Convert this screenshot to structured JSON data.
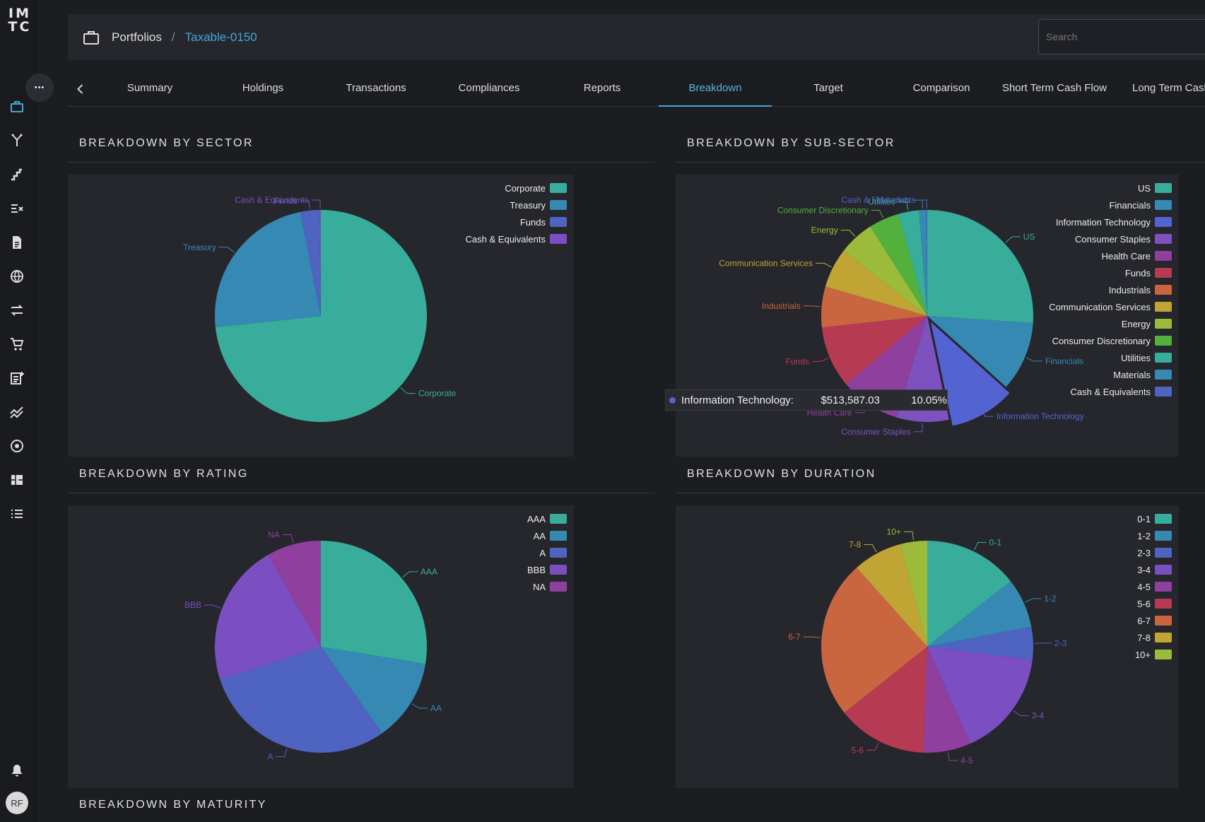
{
  "logo": {
    "line1": "IM",
    "line2": "TC"
  },
  "sidebar": {
    "items": [
      {
        "icon": "briefcase-icon"
      },
      {
        "icon": "fork-icon"
      },
      {
        "icon": "stairs-chart-icon"
      },
      {
        "icon": "filter-list-icon"
      },
      {
        "icon": "document-icon"
      },
      {
        "icon": "globe-icon"
      },
      {
        "icon": "swap-arrows-icon"
      },
      {
        "icon": "cart-icon"
      },
      {
        "icon": "add-note-icon"
      },
      {
        "icon": "trend-lines-icon"
      },
      {
        "icon": "target-icon"
      },
      {
        "icon": "grid-blocks-icon"
      },
      {
        "icon": "list-icon"
      }
    ],
    "more_label": "•••",
    "avatar_initials": "RF"
  },
  "breadcrumb": {
    "root": "Portfolios",
    "separator": "/",
    "current": "Taxable-0150"
  },
  "search": {
    "placeholder": "Search"
  },
  "tabs": [
    {
      "label": "Summary"
    },
    {
      "label": "Holdings"
    },
    {
      "label": "Transactions"
    },
    {
      "label": "Compliances"
    },
    {
      "label": "Reports"
    },
    {
      "label": "Breakdown",
      "active": true
    },
    {
      "label": "Target"
    },
    {
      "label": "Comparison"
    },
    {
      "label": "Short Term Cash Flow"
    },
    {
      "label": "Long Term Cash Flow"
    }
  ],
  "sections": {
    "sector": "BREAKDOWN BY SECTOR",
    "subsector": "BREAKDOWN BY SUB-SECTOR",
    "rating": "BREAKDOWN BY RATING",
    "duration": "BREAKDOWN BY DURATION",
    "maturity": "BREAKDOWN BY MATURITY"
  },
  "tooltip": {
    "label": "Information Technology:",
    "value": "$513,587.03",
    "percent": "10.05%",
    "color": "#5463d2"
  },
  "chart_data": [
    {
      "id": "sector",
      "type": "pie",
      "legend": "top-right",
      "categories": [
        "Corporate",
        "Treasury",
        "Funds",
        "Cash & Equivalents"
      ],
      "values": [
        73.3,
        23.6,
        2.9,
        0.2
      ],
      "colors": [
        "#38ad9b",
        "#3589b3",
        "#4f63c0",
        "#7b4fc2"
      ]
    },
    {
      "id": "subsector",
      "type": "pie",
      "legend": "top-right",
      "categories": [
        "US",
        "Financials",
        "Information Technology",
        "Consumer Staples",
        "Health Care",
        "Funds",
        "Industrials",
        "Communication Services",
        "Energy",
        "Consumer Discretionary",
        "Utilities",
        "Materials",
        "Cash & Equivalents"
      ],
      "values": [
        26.1,
        10.6,
        10.05,
        8.0,
        9.2,
        9.4,
        6.2,
        6.1,
        5.4,
        4.6,
        3.2,
        1.1,
        0.15
      ],
      "colors": [
        "#38ad9b",
        "#3589b3",
        "#5463d2",
        "#7d52bf",
        "#8f3f9e",
        "#b63b52",
        "#c96640",
        "#c0a535",
        "#9cbb3a",
        "#52b13c",
        "#38ad9b",
        "#3589b3",
        "#4f63c0"
      ],
      "highlight": "Information Technology"
    },
    {
      "id": "rating",
      "type": "pie",
      "legend": "top-right",
      "categories": [
        "AAA",
        "AA",
        "A",
        "BBB",
        "NA"
      ],
      "values": [
        27.6,
        12.6,
        29.8,
        21.7,
        8.3
      ],
      "colors": [
        "#38ad9b",
        "#3589b3",
        "#4f63c0",
        "#7b4fc2",
        "#8f3f9e"
      ]
    },
    {
      "id": "duration",
      "type": "pie",
      "legend": "top-right",
      "categories": [
        "0-1",
        "1-2",
        "2-3",
        "3-4",
        "4-5",
        "5-6",
        "6-7",
        "7-8",
        "10+"
      ],
      "values": [
        14.4,
        7.6,
        5.0,
        16.3,
        7.3,
        13.7,
        24.1,
        7.5,
        4.1
      ],
      "colors": [
        "#38ad9b",
        "#3589b3",
        "#4f63c0",
        "#7b4fc2",
        "#8f3f9e",
        "#b63b52",
        "#c96640",
        "#c0a535",
        "#9cbb3a"
      ]
    }
  ]
}
